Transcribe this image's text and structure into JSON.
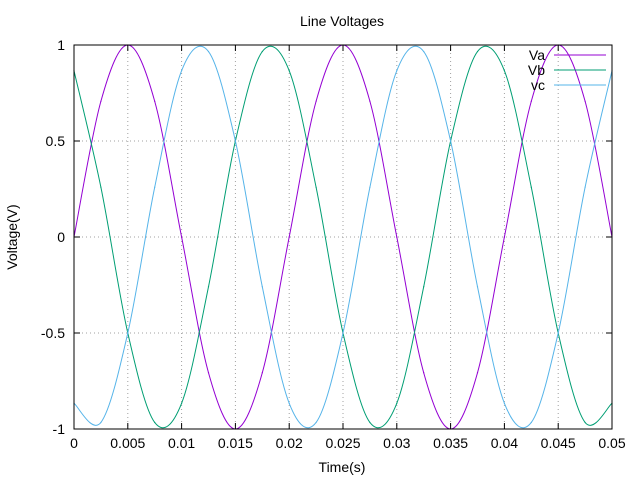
{
  "chart_data": {
    "type": "line",
    "title": "Line Voltages",
    "xlabel": "Time(s)",
    "ylabel": "Voltage(V)",
    "xlim": [
      0,
      0.05
    ],
    "ylim": [
      -1,
      1
    ],
    "grid": true,
    "legend_position": "top-right",
    "x_ticks": [
      0,
      0.005,
      0.01,
      0.015,
      0.02,
      0.025,
      0.03,
      0.035,
      0.04,
      0.045,
      0.05
    ],
    "x_tick_labels": [
      "0",
      "0.005",
      "0.01",
      "0.015",
      "0.02",
      "0.025",
      "0.03",
      "0.035",
      "0.04",
      "0.045",
      "0.05"
    ],
    "y_ticks": [
      -1,
      -0.5,
      0,
      0.5,
      1
    ],
    "y_tick_labels": [
      "-1",
      "-0.5",
      "0",
      "0.5",
      "1"
    ],
    "x": [
      0,
      0.0025,
      0.005,
      0.0075,
      0.01,
      0.0125,
      0.015,
      0.0175,
      0.02,
      0.0225,
      0.025,
      0.0275,
      0.03,
      0.0325,
      0.035,
      0.0375,
      0.04,
      0.0425,
      0.045,
      0.0475,
      0.05
    ],
    "series": [
      {
        "name": "Va",
        "color": "#9400d3",
        "values": [
          0,
          0.707,
          1,
          0.707,
          0,
          -0.707,
          -1,
          -0.707,
          0,
          0.707,
          1,
          0.707,
          0,
          -0.707,
          -1,
          -0.707,
          0,
          0.707,
          1,
          0.707,
          0
        ]
      },
      {
        "name": "Vb",
        "color": "#009e73",
        "values": [
          0.866,
          0.259,
          -0.5,
          -0.966,
          -0.866,
          -0.259,
          0.5,
          0.966,
          0.866,
          0.259,
          -0.5,
          -0.966,
          -0.866,
          -0.259,
          0.5,
          0.966,
          0.866,
          0.259,
          -0.5,
          -0.966,
          -0.866
        ]
      },
      {
        "name": "vc",
        "color": "#56b4e9",
        "values": [
          -0.866,
          -0.966,
          -0.5,
          0.259,
          0.866,
          0.966,
          0.5,
          -0.259,
          -0.866,
          -0.966,
          -0.5,
          0.259,
          0.866,
          0.966,
          0.5,
          -0.259,
          -0.866,
          -0.966,
          -0.5,
          0.259,
          0.866
        ]
      }
    ]
  }
}
